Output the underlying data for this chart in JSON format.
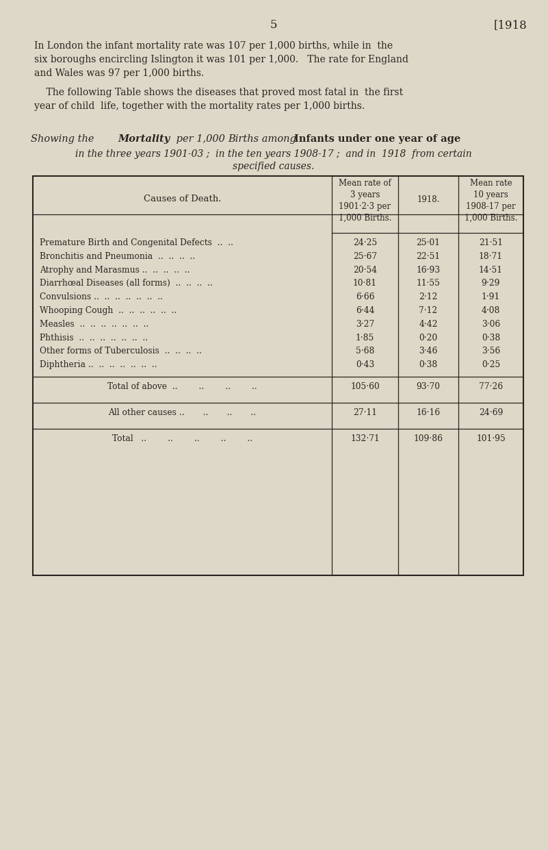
{
  "bg_color": "#ddd8c8",
  "page_number": "5",
  "header_right": "[1918",
  "col_header_cause": "Causes of Death.",
  "col_header_col1": "Mean rate of\n3 years\n1901·2·3 per\n1,000 Births.",
  "col_header_col2": "1918.",
  "col_header_col3": "Mean rate\n10 years\n1908-17 per\n1,000 Births.",
  "causes": [
    "Premature Birth and Congenital Defects  ..  ..",
    "Bronchitis and Pneumonia  ..  ..  ..  ..",
    "Atrophy and Marasmus ..  ..  ..  ..  ..",
    "Diarrhœal Diseases (all forms)  ..  ..  ..  ..",
    "Convulsions ..  ..  ..  ..  ..  ..  ..",
    "Whooping Cough  ..  ..  ..  ..  ..  ..",
    "Measles  ..  ..  ..  ..  ..  ..  ..",
    "Phthisis  ..  ..  ..  ..  ..  ..  ..",
    "Other forms of Tuberculosis  ..  ..  ..  ..",
    "Diphtheria ..  ..  ..  ..  ..  ..  .."
  ],
  "col1_values": [
    "24·25",
    "25·67",
    "20·54",
    "10·81",
    "6·66",
    "6·44",
    "3·27",
    "1·85",
    "5·68",
    "0·43"
  ],
  "col2_values": [
    "25·01",
    "22·51",
    "16·93",
    "11·55",
    "2·12",
    "7·12",
    "4·42",
    "0·20",
    "3·46",
    "0·38"
  ],
  "col3_values": [
    "21·51",
    "18·71",
    "14·51",
    "9·29",
    "1·91",
    "4·08",
    "3·06",
    "0·38",
    "3·56",
    "0·25"
  ],
  "total_above_label": "Total of above  ..        ..        ..        ..",
  "total_above_col1": "105·60",
  "total_above_col2": "93·70",
  "total_above_col3": "77·26",
  "other_causes_label": "All other causes ..       ..       ..       ..",
  "other_causes_col1": "27·11",
  "other_causes_col2": "16·16",
  "other_causes_col3": "24·69",
  "total_label": "Total   ..        ..        ..        ..        ..",
  "total_col1": "132·71",
  "total_col2": "109·86",
  "total_col3": "101·95",
  "text_color": "#2a2520"
}
